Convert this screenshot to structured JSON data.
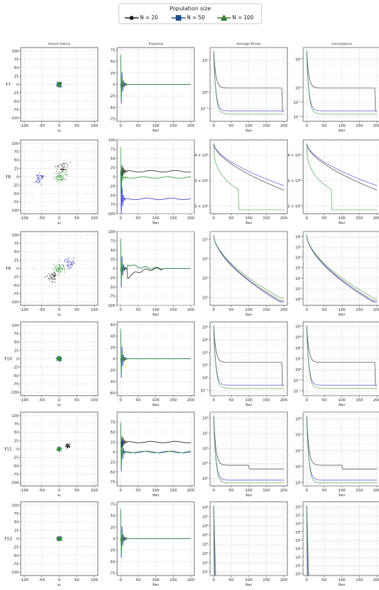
{
  "legend": {
    "title": "Population size",
    "items": [
      {
        "label": "N = 20",
        "color": "#1a1a1a",
        "marker": "circle"
      },
      {
        "label": "N = 50",
        "color": "#1f4e8c",
        "marker": "square"
      },
      {
        "label": "N = 100",
        "color": "#2e7d32",
        "marker": "triangle"
      }
    ]
  },
  "chart_data": {
    "type": "grid-of-plots",
    "column_titles": [
      "Search history",
      "Trajectory",
      "Average fitness",
      "Convergence"
    ],
    "row_labels": [
      "F7",
      "F8",
      "F9",
      "F10",
      "F11",
      "F12"
    ],
    "series_colors": {
      "N = 20": "#1a1a1a",
      "N = 50": "#3333cc",
      "N = 100": "#2e9a2e"
    },
    "xlabels": [
      "x₁",
      "Iter",
      "Iter",
      "Iter"
    ],
    "search_history": {
      "type": "scatter",
      "xticks": [
        -100,
        -50,
        0,
        50,
        100
      ],
      "yticks": [
        100,
        75,
        50,
        25,
        0,
        -25,
        -50,
        -75,
        -100
      ],
      "clusters": [
        {
          "function": "F7",
          "N = 20": [
            0,
            0
          ],
          "N = 50": [
            0,
            0
          ],
          "N = 100": [
            0,
            0
          ]
        },
        {
          "function": "F8",
          "N = 20": [
            10,
            30
          ],
          "N = 50": [
            -55,
            -5
          ],
          "N = 100": [
            5,
            0
          ]
        },
        {
          "function": "F9",
          "N = 20": [
            -20,
            -25
          ],
          "N = 50": [
            30,
            15
          ],
          "N = 100": [
            0,
            0
          ]
        },
        {
          "function": "F10",
          "N = 20": [
            0,
            0
          ],
          "N = 50": [
            0,
            0
          ],
          "N = 100": [
            0,
            0
          ]
        },
        {
          "function": "F11",
          "N = 20": [
            25,
            10
          ],
          "N = 50": [
            0,
            0
          ],
          "N = 100": [
            0,
            0
          ]
        },
        {
          "function": "F12",
          "N = 20": [
            0,
            0
          ],
          "N = 50": [
            0,
            0
          ],
          "N = 100": [
            0,
            0
          ]
        }
      ]
    },
    "trajectory": {
      "type": "line",
      "xticks": [
        0,
        50,
        100,
        150,
        200
      ],
      "panels": [
        {
          "function": "F7",
          "yticks": [
            75,
            50,
            25,
            0,
            -25,
            -50,
            -75
          ],
          "ylim": [
            -80,
            80
          ],
          "final": {
            "N = 20": 0,
            "N = 50": 0,
            "N = 100": 0
          }
        },
        {
          "function": "F8",
          "yticks": [
            100,
            75,
            50,
            25,
            0,
            -25,
            -50,
            -75,
            -100
          ],
          "ylim": [
            -100,
            100
          ],
          "final": {
            "N = 20": 15,
            "N = 50": -60,
            "N = 100": -2
          }
        },
        {
          "function": "F9",
          "yticks": [
            100,
            75,
            50,
            25,
            0,
            -25,
            -50,
            -75,
            -100
          ],
          "ylim": [
            -100,
            100
          ],
          "final": {
            "N = 20": 0,
            "N = 50": 0,
            "N = 100": 0
          }
        },
        {
          "function": "F10",
          "yticks": [
            60,
            40,
            20,
            0,
            -20,
            -40,
            -60
          ],
          "ylim": [
            -65,
            65
          ],
          "final": {
            "N = 20": 0,
            "N = 50": 0,
            "N = 100": 0
          }
        },
        {
          "function": "F11",
          "yticks": [
            75,
            50,
            25,
            0,
            -25,
            -50,
            -75
          ],
          "ylim": [
            -85,
            100
          ],
          "final": {
            "N = 20": 25,
            "N = 50": 0,
            "N = 100": 0
          }
        },
        {
          "function": "F12",
          "yticks": [
            75,
            50,
            25,
            0,
            -25,
            -50,
            -75
          ],
          "ylim": [
            -80,
            80
          ],
          "final": {
            "N = 20": 0,
            "N = 50": 0,
            "N = 100": 0
          }
        }
      ]
    },
    "average_fitness": {
      "type": "line",
      "yscale": "log",
      "xticks": [
        0,
        50,
        100,
        150,
        200
      ],
      "panels": [
        {
          "function": "F7",
          "ytick_labels": [
            "10²",
            "10⁰",
            "10⁻¹"
          ],
          "ytick_exp": [
            2,
            0,
            -1
          ],
          "ylim_exp": [
            -1.8,
            2.8
          ]
        },
        {
          "function": "F8",
          "ytick_labels": [
            "4 × 10⁰",
            "3 × 10⁰",
            "2 × 10⁰"
          ],
          "ytick_vals": [
            4,
            3,
            2
          ],
          "ylim": [
            1.7,
            4.6
          ]
        },
        {
          "function": "F9",
          "ytick_labels": [
            "10⁷",
            "10⁵",
            "10³",
            "10¹"
          ],
          "ytick_exp": [
            7,
            5,
            3,
            1
          ],
          "ylim_exp": [
            0.2,
            7.8
          ]
        },
        {
          "function": "F10",
          "ytick_labels": [
            "10⁴",
            "10³",
            "10²",
            "10¹",
            "10⁰",
            "10⁻¹"
          ],
          "ytick_exp": [
            4,
            3,
            2,
            1,
            0,
            -1
          ],
          "ylim_exp": [
            -1.4,
            4.4
          ]
        },
        {
          "function": "F11",
          "ytick_labels": [
            "10⁹",
            "10⁷",
            "10⁵",
            "10³",
            "10¹"
          ],
          "ytick_exp": [
            9,
            7,
            5,
            3,
            1
          ],
          "ylim_exp": [
            0,
            9.8
          ]
        },
        {
          "function": "F12",
          "ytick_labels": [
            "10⁸",
            "10⁷",
            "10⁶",
            "10⁵",
            "10⁴",
            "10³",
            "10²",
            "10¹"
          ],
          "ytick_exp": [
            8,
            7,
            6,
            5,
            4,
            3,
            2,
            1
          ],
          "ylim_exp": [
            0.6,
            8.6
          ]
        }
      ]
    },
    "convergence": {
      "type": "line",
      "yscale": "log",
      "xticks": [
        0,
        50,
        100,
        150,
        200
      ],
      "panels": [
        {
          "function": "F7",
          "ytick_labels": [
            "10²",
            "10⁰",
            "10⁻¹",
            "10⁻²"
          ],
          "ytick_exp": [
            2,
            0,
            -1,
            -2
          ],
          "ylim_exp": [
            -2.3,
            2.8
          ]
        },
        {
          "function": "F8",
          "ytick_labels": [
            "4 × 10⁰",
            "3 × 10⁰",
            "2 × 10⁰"
          ],
          "ytick_vals": [
            4,
            3,
            2
          ],
          "ylim": [
            1.7,
            4.6
          ]
        },
        {
          "function": "F9",
          "ytick_labels": [
            "10⁶",
            "10⁵",
            "10⁴",
            "10³",
            "10²",
            "10¹",
            "10⁰"
          ],
          "ytick_exp": [
            6,
            5,
            4,
            3,
            2,
            1,
            0
          ],
          "ylim_exp": [
            -0.6,
            6.5
          ]
        },
        {
          "function": "F10",
          "ytick_labels": [
            "10⁴",
            "10³",
            "10²",
            "10¹",
            "10⁰",
            "10⁻¹",
            "10⁻²"
          ],
          "ytick_exp": [
            4,
            3,
            2,
            1,
            0,
            -1,
            -2
          ],
          "ylim_exp": [
            -2.4,
            4.4
          ]
        },
        {
          "function": "F11",
          "ytick_labels": [
            "10⁸",
            "10⁶",
            "10⁴",
            "10²",
            "10⁰"
          ],
          "ytick_exp": [
            8,
            6,
            4,
            2,
            0
          ],
          "ylim_exp": [
            -0.4,
            8.8
          ]
        },
        {
          "function": "F12",
          "ytick_labels": [
            "10⁸",
            "10⁷",
            "10⁶",
            "10⁵",
            "10⁴",
            "10³",
            "10²",
            "10¹",
            "10⁰"
          ],
          "ytick_exp": [
            8,
            7,
            6,
            5,
            4,
            3,
            2,
            1,
            0
          ],
          "ylim_exp": [
            -0.2,
            8.6
          ]
        }
      ]
    }
  }
}
